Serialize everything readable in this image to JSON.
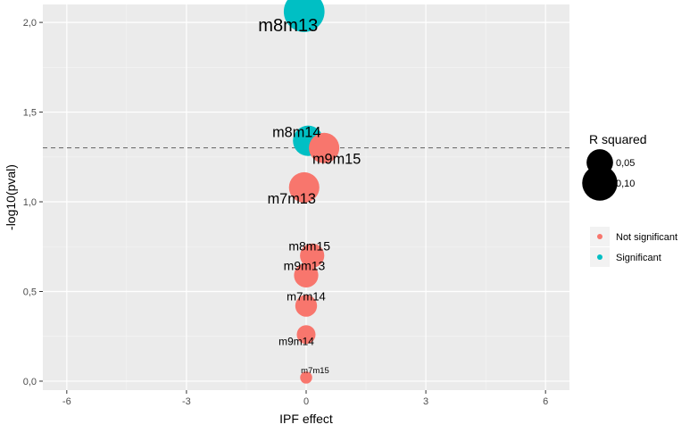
{
  "chart_data": {
    "type": "scatter",
    "xlabel": "IPF effect",
    "ylabel": "-log10(pval)",
    "xlim": [
      -6.6,
      6.6
    ],
    "ylim": [
      -0.05,
      2.1
    ],
    "x_ticks": [
      -6,
      -3,
      0,
      3,
      6
    ],
    "x_tick_labels": [
      "-6",
      "-3",
      "0",
      "3",
      "6"
    ],
    "y_ticks": [
      0.0,
      0.5,
      1.0,
      1.5,
      2.0
    ],
    "y_tick_labels": [
      "0,0",
      "0,5",
      "1,0",
      "1,5",
      "2,0"
    ],
    "grid": true,
    "threshold_line": {
      "y": 1.301,
      "style": "dashed"
    },
    "size_legend": {
      "title": "R squared",
      "entries": [
        {
          "label": "0,05",
          "value": 0.05
        },
        {
          "label": "0,10",
          "value": 0.1
        }
      ]
    },
    "color_legend": {
      "entries": [
        {
          "label": "Not significant",
          "color": "#F8766D"
        },
        {
          "label": "Significant",
          "color": "#00BFC4"
        }
      ]
    },
    "legend_position": "right",
    "points": [
      {
        "label": "m8m13",
        "x": -0.05,
        "y": 2.06,
        "r2": 0.14,
        "significant": true
      },
      {
        "label": "m8m14",
        "x": 0.05,
        "y": 1.34,
        "r2": 0.07,
        "significant": true
      },
      {
        "label": "m9m15",
        "x": 0.45,
        "y": 1.3,
        "r2": 0.07,
        "significant": false
      },
      {
        "label": "m7m13",
        "x": -0.05,
        "y": 1.08,
        "r2": 0.07,
        "significant": false
      },
      {
        "label": "m8m15",
        "x": 0.15,
        "y": 0.7,
        "r2": 0.04,
        "significant": false
      },
      {
        "label": "m9m13",
        "x": 0.0,
        "y": 0.59,
        "r2": 0.04,
        "significant": false
      },
      {
        "label": "m7m14",
        "x": 0.0,
        "y": 0.42,
        "r2": 0.03,
        "significant": false
      },
      {
        "label": "m9m14",
        "x": 0.0,
        "y": 0.26,
        "r2": 0.02,
        "significant": false
      },
      {
        "label": "m7m15",
        "x": 0.0,
        "y": 0.02,
        "r2": 0.005,
        "significant": false
      }
    ]
  }
}
